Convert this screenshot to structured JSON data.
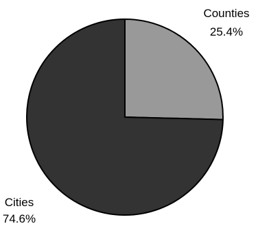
{
  "chart_data": {
    "type": "pie",
    "title": "",
    "slices": [
      {
        "label": "Counties",
        "value": 25.4,
        "value_label": "25.4%",
        "color": "#999999"
      },
      {
        "label": "Cities",
        "value": 74.6,
        "value_label": "74.6%",
        "color": "#333333"
      }
    ],
    "start_angle": "12 o'clock",
    "direction": "clockwise",
    "outline_color": "#000000",
    "legend": "none"
  }
}
